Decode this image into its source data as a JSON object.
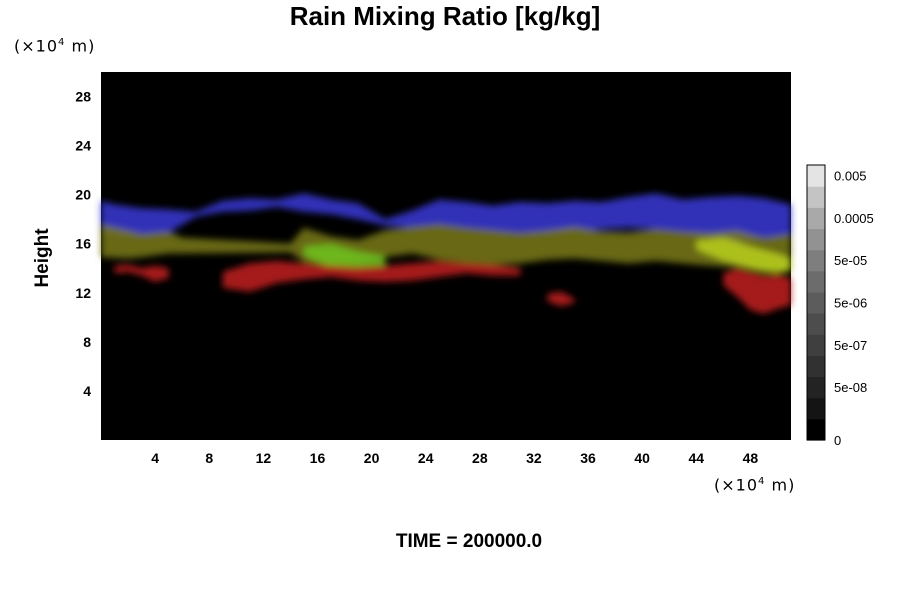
{
  "title": "Rain Mixing Ratio [kg/kg]",
  "footer": "TIME = 200000.0",
  "y_unit": {
    "prefix": "(×10",
    "exp": "4",
    "suffix": " m)"
  },
  "x_unit": {
    "prefix": "(×10",
    "exp": "4",
    "suffix": " m)"
  },
  "chart_data": {
    "type": "heatmap",
    "title": "Rain Mixing Ratio [kg/kg]",
    "xlabel": "",
    "ylabel": "Height",
    "x_unit": "×10^4 m",
    "y_unit": "×10^4 m",
    "xlim": [
      0,
      51
    ],
    "ylim": [
      0,
      30
    ],
    "xticks": [
      4,
      8,
      12,
      16,
      20,
      24,
      28,
      32,
      36,
      40,
      44,
      48
    ],
    "yticks": [
      4,
      8,
      12,
      16,
      20,
      24,
      28
    ],
    "background_color": "#000000",
    "colorbar": {
      "labels": [
        "0.005",
        "0.0005",
        "5e-05",
        "5e-06",
        "5e-07",
        "5e-08",
        "0"
      ],
      "label_levels": [
        12,
        10,
        8,
        6,
        4,
        2,
        0
      ],
      "levels": 13,
      "colors": [
        "#000000",
        "#141414",
        "#232323",
        "#313131",
        "#3f3f3f",
        "#4d4d4d",
        "#5c5c5c",
        "#6c6c6c",
        "#7e7e7e",
        "#929292",
        "#a9a9a9",
        "#c4c4c4",
        "#e4e4e4"
      ]
    },
    "layers": [
      {
        "color": "#3a3ad8",
        "x": [
          0,
          1,
          3,
          5,
          7,
          9,
          11,
          13,
          15,
          17,
          19,
          21,
          23,
          25,
          27,
          29,
          31,
          33,
          35,
          37,
          39,
          41,
          43,
          45,
          47,
          49,
          51
        ],
        "top": [
          19.5,
          19.2,
          18.9,
          18.8,
          18.6,
          19.5,
          19.7,
          19.6,
          20.1,
          19.6,
          19.3,
          18.0,
          18.7,
          19.6,
          19.4,
          19.1,
          19.4,
          19.3,
          19.5,
          19.4,
          19.8,
          20.1,
          19.6,
          19.8,
          19.9,
          19.7,
          19.2
        ],
        "bottom": [
          17.0,
          16.8,
          16.5,
          16.9,
          18.2,
          18.6,
          18.7,
          19.0,
          18.6,
          18.4,
          18.0,
          17.5,
          17.3,
          17.5,
          17.3,
          17.0,
          16.9,
          16.8,
          17.0,
          17.2,
          17.3,
          17.2,
          17.0,
          16.6,
          16.1,
          16.5,
          16.7
        ]
      },
      {
        "color": "#7a7a1a",
        "x": [
          0,
          2,
          3,
          5,
          6,
          14,
          15,
          17,
          19,
          21,
          23,
          25,
          27,
          29,
          31,
          33,
          35,
          37,
          39,
          41,
          43,
          45,
          47,
          49,
          51
        ],
        "top": [
          17.6,
          17.1,
          16.8,
          17.0,
          16.5,
          16.0,
          17.3,
          16.6,
          16.3,
          17.1,
          17.4,
          17.6,
          17.3,
          17.1,
          16.9,
          17.1,
          17.4,
          17.0,
          16.9,
          17.2,
          17.0,
          16.9,
          17.1,
          16.5,
          16.8
        ],
        "bottom": [
          14.9,
          14.8,
          14.9,
          15.2,
          15.2,
          15.3,
          14.5,
          14.2,
          14.4,
          14.9,
          15.2,
          14.7,
          14.4,
          14.3,
          14.4,
          14.7,
          14.8,
          14.6,
          14.4,
          14.6,
          14.4,
          14.2,
          14.1,
          13.6,
          13.7
        ]
      },
      {
        "color": "#6fc41e",
        "x": [
          15,
          17,
          19,
          21
        ],
        "top": [
          15.8,
          16.0,
          15.4,
          15.0
        ],
        "bottom": [
          15.0,
          14.0,
          13.8,
          14.2
        ]
      },
      {
        "color": "#b8d01a",
        "x": [
          44,
          46,
          48,
          50,
          51
        ],
        "top": [
          16.3,
          16.5,
          15.8,
          15.2,
          14.8
        ],
        "bottom": [
          15.5,
          14.6,
          14.0,
          13.6,
          13.9
        ]
      },
      {
        "color": "#c21c1c",
        "x": [
          1,
          2,
          3,
          4,
          5
        ],
        "top": [
          14.2,
          14.3,
          14.0,
          14.2,
          14.0
        ],
        "bottom": [
          13.6,
          13.7,
          13.4,
          12.9,
          13.2
        ]
      },
      {
        "color": "#c21c1c",
        "x": [
          9,
          11,
          13,
          15,
          17,
          19,
          21,
          23,
          25,
          27,
          29,
          31
        ],
        "top": [
          13.7,
          14.4,
          14.6,
          14.4,
          14.2,
          14.1,
          14.2,
          14.4,
          14.6,
          14.4,
          14.3,
          14.0
        ],
        "bottom": [
          12.4,
          12.1,
          12.8,
          13.1,
          13.3,
          13.0,
          12.9,
          13.0,
          13.3,
          13.6,
          13.4,
          13.4
        ]
      },
      {
        "color": "#c21c1c",
        "x": [
          33,
          34,
          35
        ],
        "top": [
          11.9,
          12.1,
          11.5
        ],
        "bottom": [
          11.3,
          10.9,
          11.2
        ]
      },
      {
        "color": "#c21c1c",
        "x": [
          46,
          47,
          48,
          49,
          50,
          51
        ],
        "top": [
          13.6,
          14.0,
          13.7,
          13.4,
          13.5,
          13.2
        ],
        "bottom": [
          12.6,
          11.7,
          10.6,
          10.3,
          10.7,
          11.0
        ]
      }
    ]
  }
}
